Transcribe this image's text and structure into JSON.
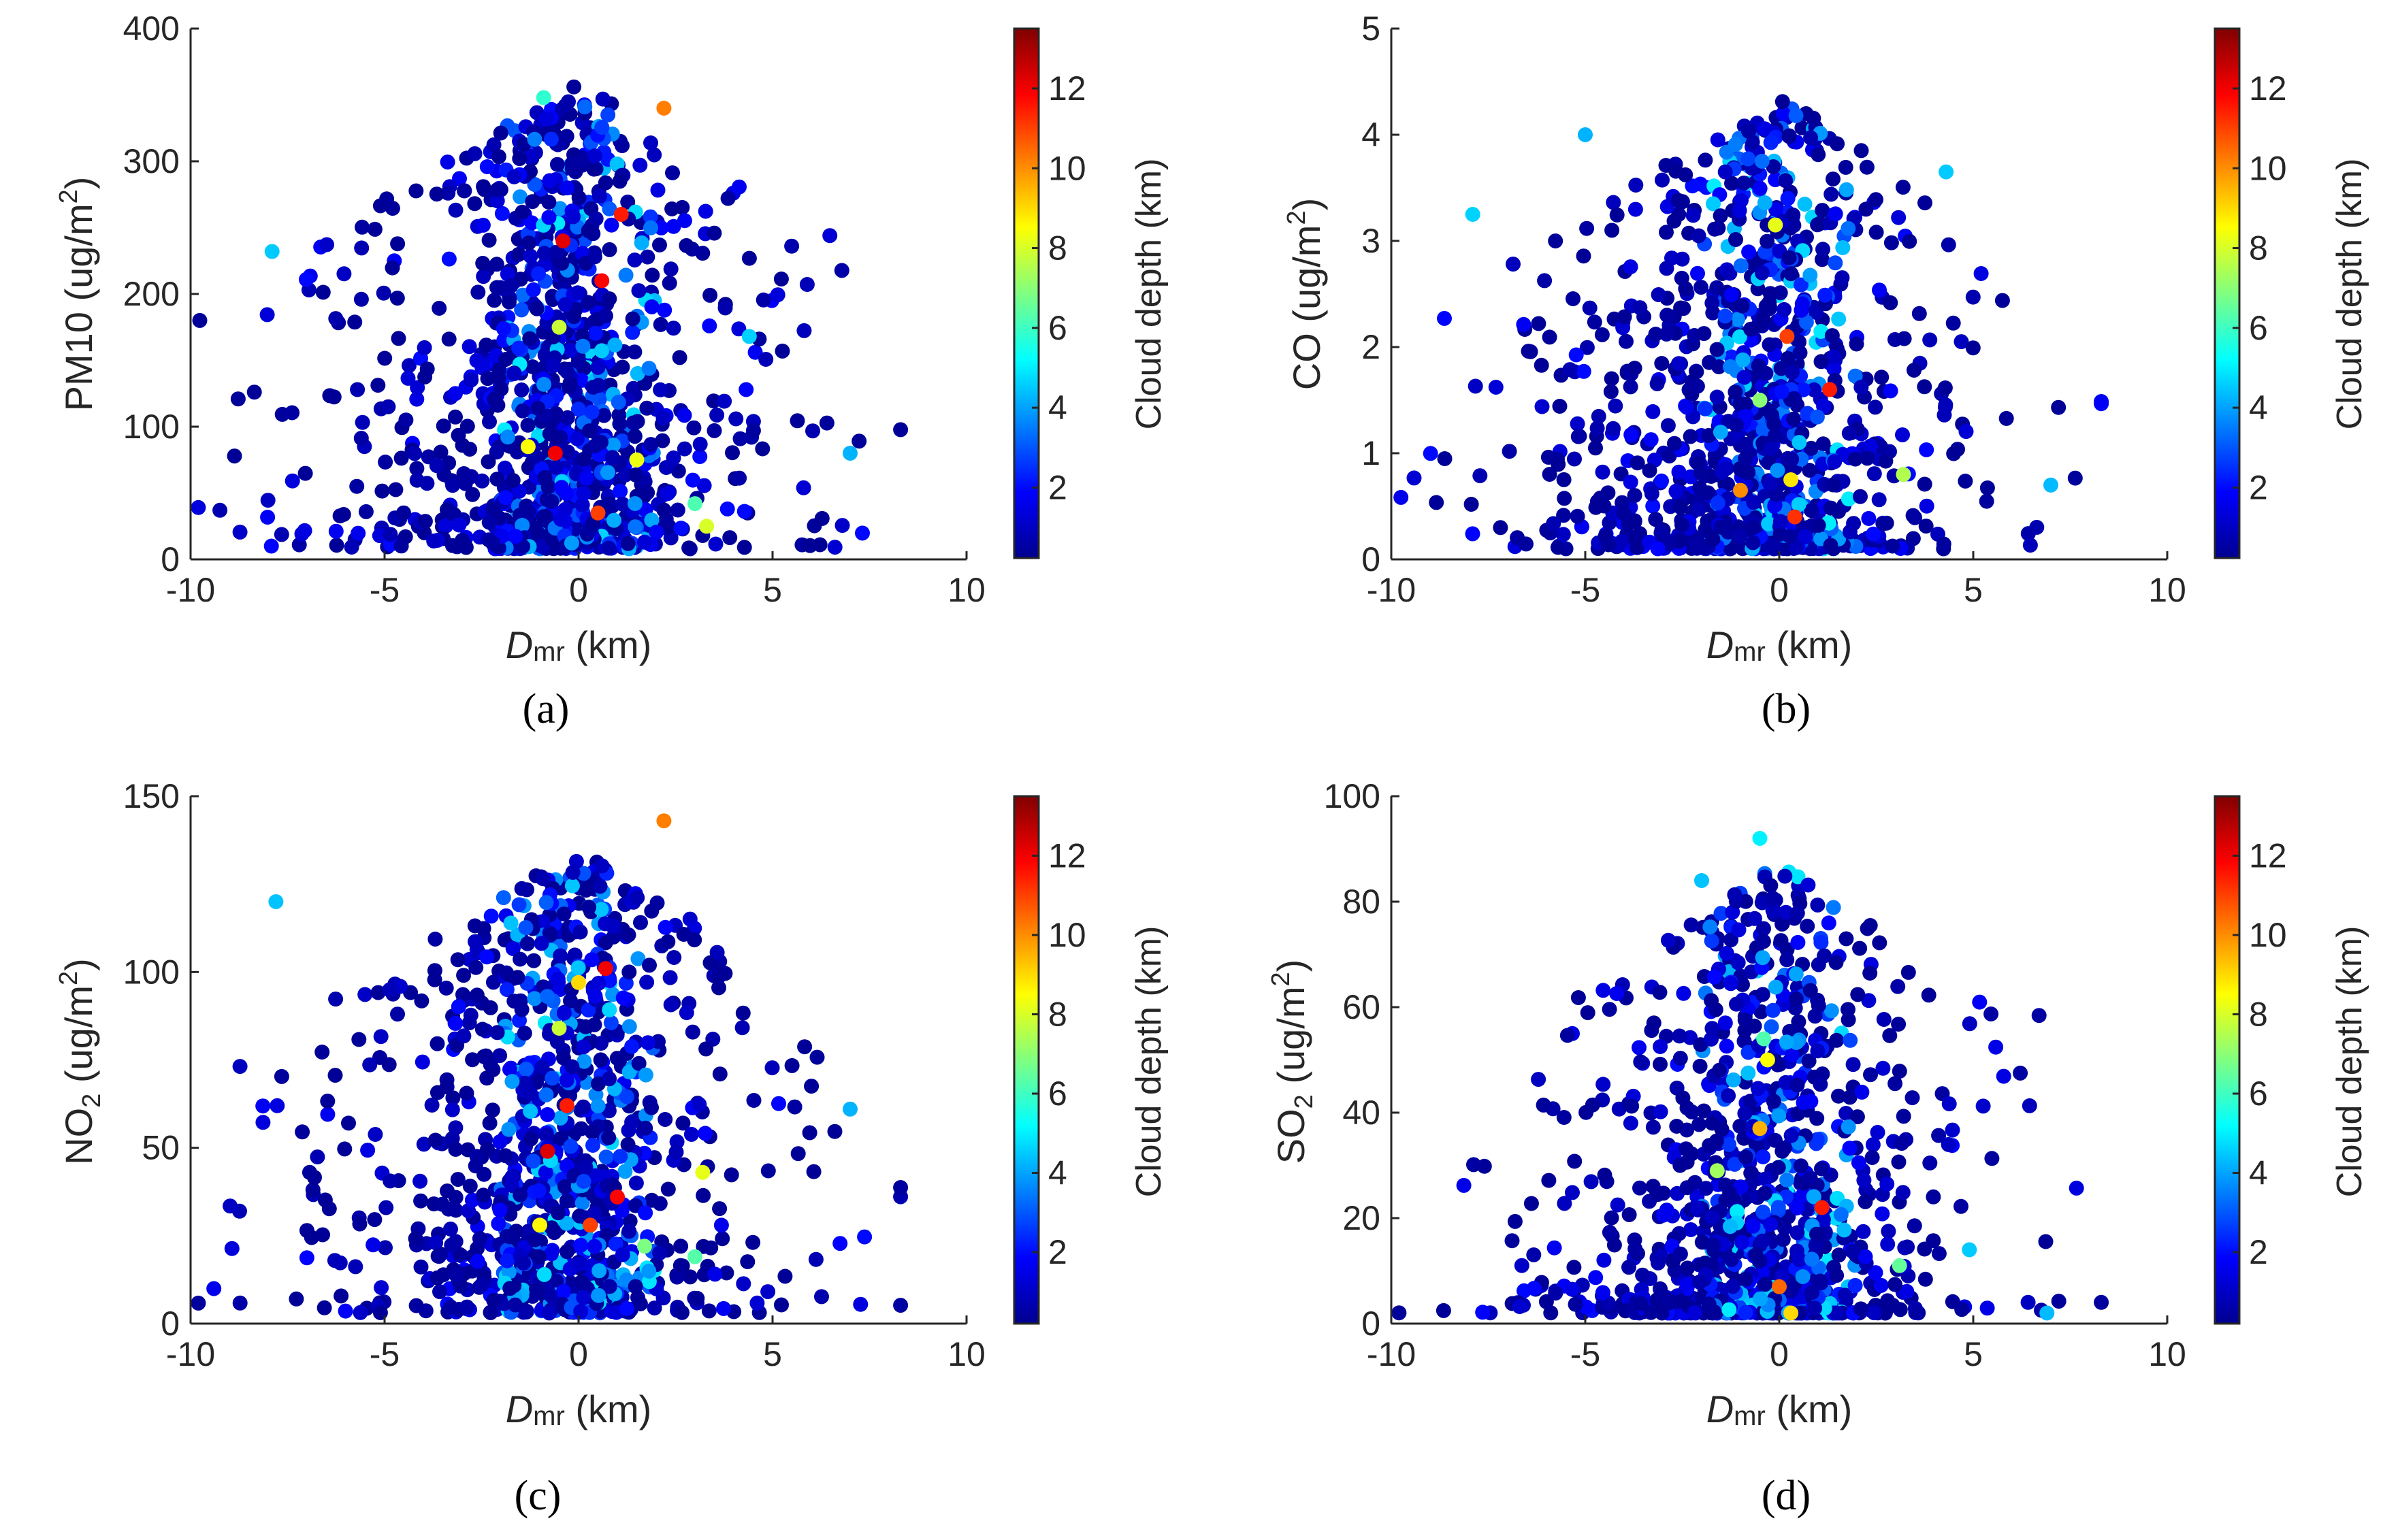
{
  "colors": {
    "axis": "#262626",
    "colormap": "jet"
  },
  "colorbar": {
    "label": "Cloud depth (km)",
    "range": [
      0.2,
      13.5
    ],
    "ticks": [
      "2",
      "4",
      "6",
      "8",
      "10",
      "12"
    ],
    "tick_values": [
      2,
      4,
      6,
      8,
      10,
      12
    ]
  },
  "chart_data": [
    {
      "type": "scatter",
      "caption": "(a)",
      "xlabel": "Dmr (km)",
      "xlabel_main": "D",
      "xlabel_sub": "mr",
      "xlabel_unit": " (km)",
      "ylabel": "PM10 (ug/m2)",
      "ylabel_parts": [
        "PM10 (ug/m",
        "2",
        ")"
      ],
      "xlim": [
        -10,
        10
      ],
      "ylim": [
        0,
        400
      ],
      "xticks": [
        "-10",
        "-5",
        "0",
        "5",
        "10"
      ],
      "xtick_values": [
        -10,
        -5,
        0,
        5,
        10
      ],
      "yticks": [
        "0",
        "100",
        "200",
        "300",
        "400"
      ],
      "ytick_values": [
        0,
        100,
        200,
        300,
        400
      ],
      "highlights": [
        {
          "x": 2.2,
          "y": 340,
          "c": 10.2
        },
        {
          "x": 1.1,
          "y": 260,
          "c": 11.5
        },
        {
          "x": 0.6,
          "y": 210,
          "c": 11.8
        },
        {
          "x": -0.9,
          "y": 348,
          "c": 5.8
        },
        {
          "x": -0.4,
          "y": 240,
          "c": 12.2
        },
        {
          "x": 1.5,
          "y": 75,
          "c": 8.3
        },
        {
          "x": 3.3,
          "y": 25,
          "c": 8.0
        },
        {
          "x": 3.0,
          "y": 42,
          "c": 6.2
        },
        {
          "x": -1.3,
          "y": 85,
          "c": 8.5
        },
        {
          "x": -0.6,
          "y": 80,
          "c": 12.0
        },
        {
          "x": 0.5,
          "y": 35,
          "c": 11.0
        },
        {
          "x": 4.4,
          "y": 168,
          "c": 4.6
        },
        {
          "x": 7.0,
          "y": 80,
          "c": 4.2
        },
        {
          "x": -7.9,
          "y": 232,
          "c": 4.5
        },
        {
          "x": -0.5,
          "y": 175,
          "c": 7.8
        }
      ]
    },
    {
      "type": "scatter",
      "caption": "(b)",
      "xlabel": "Dmr (km)",
      "xlabel_main": "D",
      "xlabel_sub": "mr",
      "xlabel_unit": " (km)",
      "ylabel": "CO (ug/m2)",
      "ylabel_parts": [
        "CO (ug/m",
        "2",
        ")"
      ],
      "xlim": [
        -10,
        10
      ],
      "ylim": [
        0,
        5
      ],
      "xticks": [
        "-10",
        "-5",
        "0",
        "5",
        "10"
      ],
      "xtick_values": [
        -10,
        -5,
        0,
        5,
        10
      ],
      "yticks": [
        "0",
        "1",
        "2",
        "3",
        "4",
        "5"
      ],
      "ytick_values": [
        0,
        1,
        2,
        3,
        4,
        5
      ],
      "highlights": [
        {
          "x": -0.1,
          "y": 3.15,
          "c": 8.2
        },
        {
          "x": 1.3,
          "y": 1.6,
          "c": 11.5
        },
        {
          "x": 0.2,
          "y": 2.1,
          "c": 11.0
        },
        {
          "x": 0.4,
          "y": 0.4,
          "c": 11.2
        },
        {
          "x": -1.0,
          "y": 0.65,
          "c": 10.0
        },
        {
          "x": 3.2,
          "y": 0.8,
          "c": 7.5
        },
        {
          "x": -7.9,
          "y": 3.25,
          "c": 4.6
        },
        {
          "x": 4.3,
          "y": 3.65,
          "c": 4.5
        },
        {
          "x": -5.0,
          "y": 4.0,
          "c": 4.2
        },
        {
          "x": 7.0,
          "y": 0.7,
          "c": 4.3
        },
        {
          "x": -0.5,
          "y": 1.5,
          "c": 7.0
        },
        {
          "x": 0.3,
          "y": 0.75,
          "c": 8.8
        }
      ]
    },
    {
      "type": "scatter",
      "caption": "(c)",
      "xlabel": "Dmr (km)",
      "xlabel_main": "D",
      "xlabel_sub": "mr",
      "xlabel_unit": " (km)",
      "ylabel": "NO2 (ug/m2)",
      "ylabel_parts": [
        "NO",
        "2",
        " (ug/m",
        "2",
        ")"
      ],
      "xlim": [
        -10,
        10
      ],
      "ylim": [
        0,
        150
      ],
      "xticks": [
        "-10",
        "-5",
        "0",
        "5",
        "10"
      ],
      "xtick_values": [
        -10,
        -5,
        0,
        5,
        10
      ],
      "yticks": [
        "0",
        "50",
        "100",
        "150"
      ],
      "ytick_values": [
        0,
        50,
        100,
        150
      ],
      "highlights": [
        {
          "x": 2.2,
          "y": 143,
          "c": 10.2
        },
        {
          "x": 0.7,
          "y": 101,
          "c": 12.0
        },
        {
          "x": -0.3,
          "y": 62,
          "c": 11.5
        },
        {
          "x": -0.8,
          "y": 49,
          "c": 12.3
        },
        {
          "x": 0.3,
          "y": 28,
          "c": 11.0
        },
        {
          "x": 1.0,
          "y": 36,
          "c": 11.8
        },
        {
          "x": 3.2,
          "y": 43,
          "c": 8.2
        },
        {
          "x": 3.0,
          "y": 19,
          "c": 6.3
        },
        {
          "x": -7.8,
          "y": 120,
          "c": 4.4
        },
        {
          "x": 7.0,
          "y": 61,
          "c": 4.2
        },
        {
          "x": -1.0,
          "y": 28,
          "c": 8.6
        },
        {
          "x": 0.0,
          "y": 97,
          "c": 9.0
        },
        {
          "x": -0.5,
          "y": 84,
          "c": 7.8
        },
        {
          "x": 1.7,
          "y": 22,
          "c": 6.8
        }
      ]
    },
    {
      "type": "scatter",
      "caption": "(d)",
      "xlabel": "Dmr (km)",
      "xlabel_main": "D",
      "xlabel_sub": "mr",
      "xlabel_unit": " (km)",
      "ylabel": "SO2 (ug/m2)",
      "ylabel_parts": [
        "SO",
        "2",
        " (ug/m",
        "2",
        ")"
      ],
      "xlim": [
        -10,
        10
      ],
      "ylim": [
        0,
        100
      ],
      "xticks": [
        "-10",
        "-5",
        "0",
        "5",
        "10"
      ],
      "xtick_values": [
        -10,
        -5,
        0,
        5,
        10
      ],
      "yticks": [
        "0",
        "20",
        "40",
        "60",
        "80",
        "100"
      ],
      "ytick_values": [
        0,
        20,
        40,
        60,
        80,
        100
      ],
      "highlights": [
        {
          "x": 1.1,
          "y": 22,
          "c": 11.5
        },
        {
          "x": -0.3,
          "y": 50,
          "c": 8.5
        },
        {
          "x": -0.5,
          "y": 92,
          "c": 5.0
        },
        {
          "x": 3.1,
          "y": 11,
          "c": 6.5
        },
        {
          "x": 0.3,
          "y": 2,
          "c": 9.0
        },
        {
          "x": -0.5,
          "y": 37,
          "c": 9.5
        },
        {
          "x": 0.0,
          "y": 7,
          "c": 10.5
        },
        {
          "x": -0.4,
          "y": 54,
          "c": 6.2
        },
        {
          "x": -2.0,
          "y": 84,
          "c": 4.4
        },
        {
          "x": 6.9,
          "y": 2,
          "c": 4.3
        },
        {
          "x": 4.9,
          "y": 14,
          "c": 4.5
        },
        {
          "x": -1.6,
          "y": 29,
          "c": 7.3
        }
      ]
    }
  ]
}
